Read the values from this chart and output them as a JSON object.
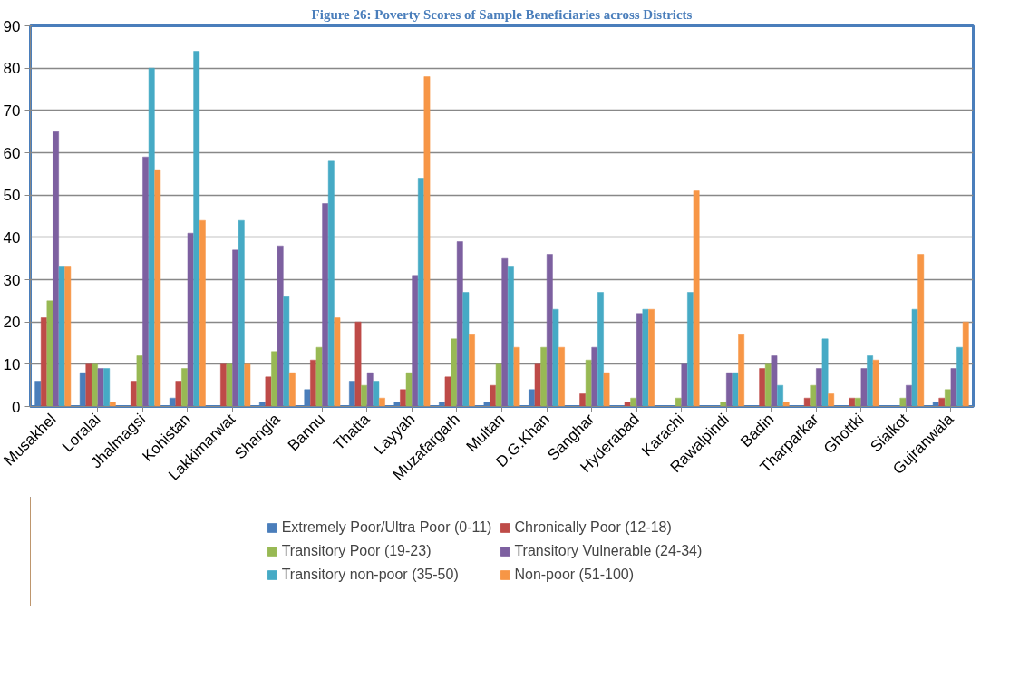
{
  "chart_data": {
    "type": "bar",
    "title": "Figure 26: Poverty Scores of Sample Beneficiaries across Districts",
    "categories": [
      "Musakhel",
      "Loralai",
      "Jhalmagsi",
      "Kohistan",
      "Lakkimarwat",
      "Shangla",
      "Bannu",
      "Thatta",
      "Layyah",
      "Muzafargarh",
      "Multan",
      "D.G.Khan",
      "Sanghar",
      "Hyderabad",
      "Karachi",
      "Rawalpindi",
      "Badin",
      "Tharparkar",
      "Ghottki",
      "Sialkot",
      "Gujranwala"
    ],
    "series": [
      {
        "name": "Extremely Poor/Ultra Poor (0-11)",
        "color": "#4a7ebb",
        "values": [
          6,
          8,
          0,
          2,
          0,
          1,
          4,
          6,
          1,
          1,
          1,
          4,
          0,
          0,
          0,
          0,
          0,
          0,
          0,
          0,
          1
        ]
      },
      {
        "name": "Chronically Poor (12-18)",
        "color": "#be4b48",
        "values": [
          21,
          10,
          6,
          6,
          10,
          7,
          11,
          20,
          4,
          7,
          5,
          10,
          3,
          1,
          0,
          0,
          9,
          2,
          2,
          0,
          2
        ]
      },
      {
        "name": "Transitory Poor (19-23)",
        "color": "#98b954",
        "values": [
          25,
          10,
          12,
          9,
          10,
          13,
          14,
          5,
          8,
          16,
          10,
          14,
          11,
          2,
          2,
          1,
          10,
          5,
          2,
          2,
          4
        ]
      },
      {
        "name": "Transitory Vulnerable (24-34)",
        "color": "#7d60a0",
        "values": [
          65,
          9,
          59,
          41,
          37,
          38,
          48,
          8,
          31,
          39,
          35,
          36,
          14,
          22,
          10,
          8,
          12,
          9,
          9,
          5,
          9
        ]
      },
      {
        "name": "Transitory non-poor (35-50)",
        "color": "#46aac5",
        "values": [
          33,
          9,
          80,
          84,
          44,
          26,
          58,
          6,
          54,
          27,
          33,
          23,
          27,
          23,
          27,
          8,
          5,
          16,
          12,
          23,
          14
        ]
      },
      {
        "name": "Non-poor (51-100)",
        "color": "#f79646",
        "values": [
          33,
          1,
          56,
          44,
          10,
          8,
          21,
          2,
          78,
          17,
          14,
          14,
          8,
          23,
          51,
          17,
          1,
          3,
          11,
          36,
          20
        ]
      }
    ],
    "ylim": [
      0,
      90
    ],
    "yticks": [
      0,
      10,
      20,
      30,
      40,
      50,
      60,
      70,
      80,
      90
    ],
    "grid": "y",
    "legend": "bottom"
  }
}
